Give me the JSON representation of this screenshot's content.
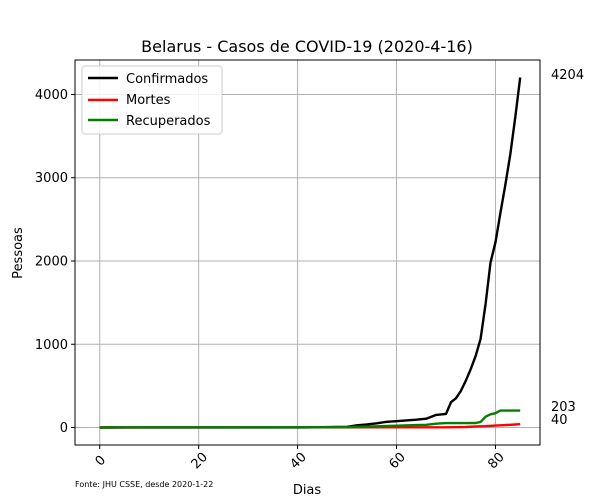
{
  "chart_data": {
    "type": "line",
    "title": "Belarus - Casos de COVID-19 (2020-4-16)",
    "xlabel": "Dias",
    "ylabel": "Pessoas",
    "xlim": [
      -5,
      89
    ],
    "ylim": [
      -210,
      4414
    ],
    "xticks": [
      0,
      20,
      40,
      60,
      80
    ],
    "yticks": [
      0,
      1000,
      2000,
      3000,
      4000
    ],
    "grid": true,
    "legend_position": "top-left",
    "source_note": "Fonte: JHU CSSE, desde 2020-1-22",
    "end_labels": [
      "4204",
      "203",
      "40"
    ],
    "series": [
      {
        "name": "Confirmados",
        "color": "#000000",
        "x": [
          0,
          41,
          48,
          50,
          52,
          54,
          56,
          58,
          60,
          62,
          64,
          66,
          68,
          70,
          71,
          72,
          73,
          74,
          75,
          76,
          77,
          78,
          79,
          80,
          81,
          82,
          83,
          84,
          85
        ],
        "y": [
          0,
          1,
          6,
          9,
          27,
          36,
          51,
          69,
          76,
          86,
          94,
          106,
          152,
          163,
          304,
          351,
          440,
          562,
          700,
          861,
          1066,
          1486,
          1981,
          2226,
          2578,
          2919,
          3281,
          3728,
          4204
        ]
      },
      {
        "name": "Mortes",
        "color": "#ff0000",
        "x": [
          0,
          70,
          72,
          74,
          76,
          78,
          80,
          82,
          84,
          85
        ],
        "y": [
          0,
          2,
          4,
          6,
          13,
          16,
          23,
          29,
          36,
          40
        ]
      },
      {
        "name": "Recuperados",
        "color": "#008000",
        "x": [
          0,
          44,
          50,
          56,
          60,
          64,
          66,
          68,
          70,
          72,
          74,
          76,
          77,
          78,
          79,
          80,
          81,
          82,
          83,
          84,
          85
        ],
        "y": [
          0,
          3,
          5,
          15,
          22,
          29,
          33,
          46,
          53,
          53,
          53,
          54,
          67,
          130,
          159,
          172,
          203,
          203,
          203,
          203,
          203
        ]
      }
    ]
  }
}
